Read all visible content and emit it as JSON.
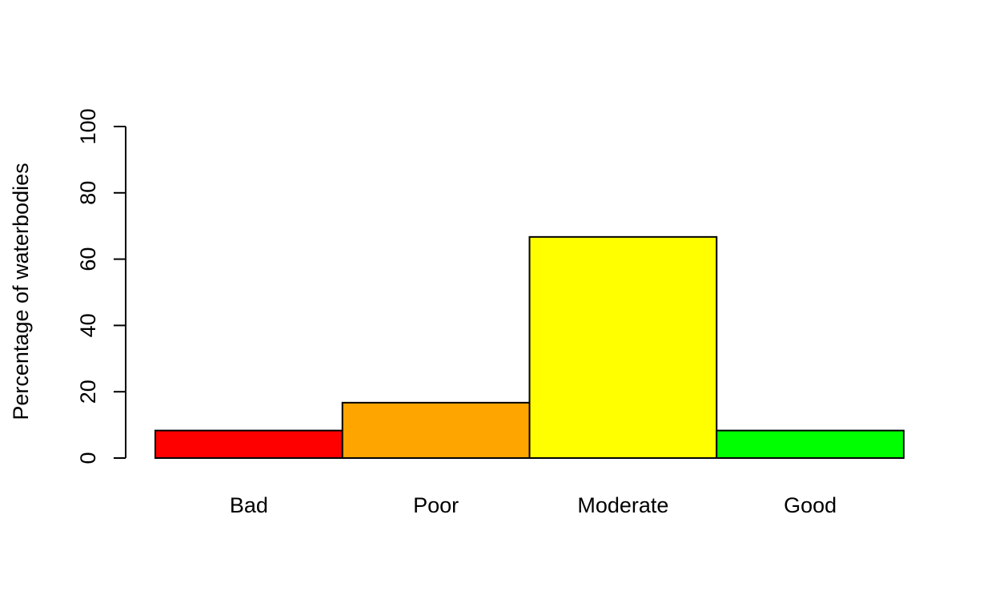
{
  "chart_data": {
    "type": "bar",
    "title": "",
    "xlabel": "",
    "ylabel": "Percentage of waterbodies",
    "ylim": [
      0,
      100
    ],
    "yticks": [
      0,
      20,
      40,
      60,
      80,
      100
    ],
    "categories": [
      "Bad",
      "Poor",
      "Moderate",
      "Good"
    ],
    "values": [
      8.3,
      16.7,
      66.7,
      8.3
    ],
    "colors": [
      "#ff0000",
      "#ffa500",
      "#ffff00",
      "#00ff00"
    ],
    "grid": false,
    "legend": "none"
  }
}
